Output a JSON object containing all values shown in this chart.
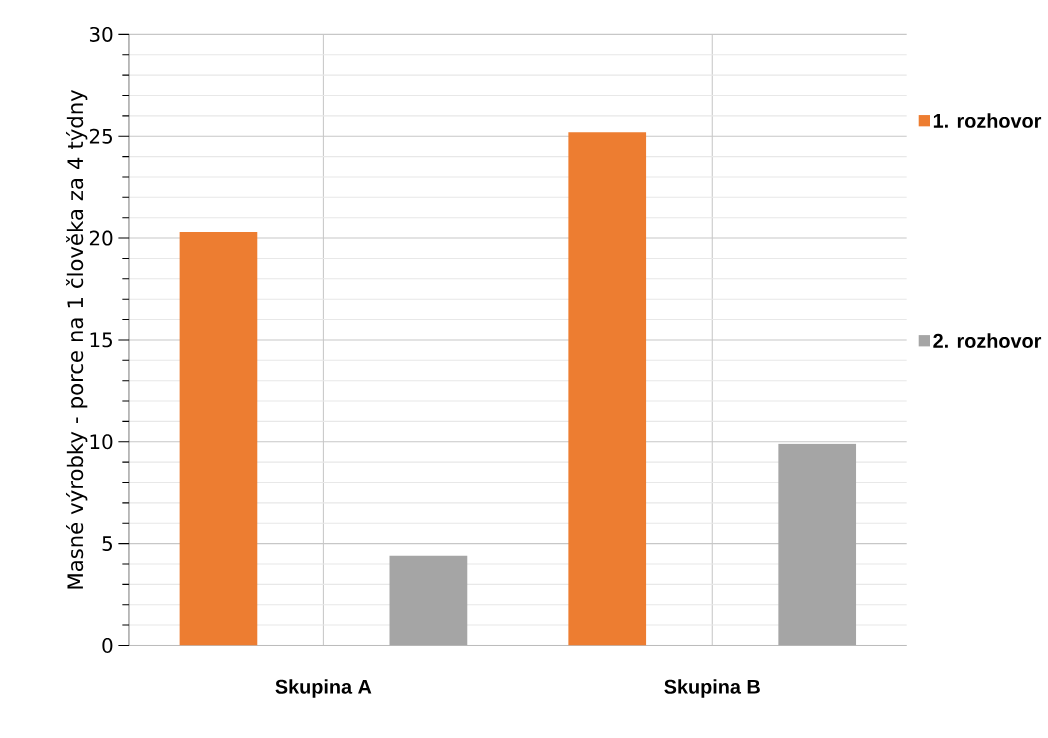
{
  "chart_data": {
    "type": "bar",
    "ylabel": "Masné výrobky - porce na 1 člověka za 4 týdny",
    "categories": [
      "Skupina A",
      "Skupina B"
    ],
    "series": [
      {
        "name": "1. rozhovor",
        "color": "#ed7d31",
        "values": [
          20.3,
          25.2
        ]
      },
      {
        "name": "2. rozhovor",
        "color": "#a5a5a5",
        "values": [
          4.4,
          9.9
        ]
      }
    ],
    "ylim": [
      0,
      30
    ],
    "yticks": [
      0,
      5,
      10,
      15,
      20,
      25,
      30
    ],
    "grid": true,
    "legend": "right"
  }
}
